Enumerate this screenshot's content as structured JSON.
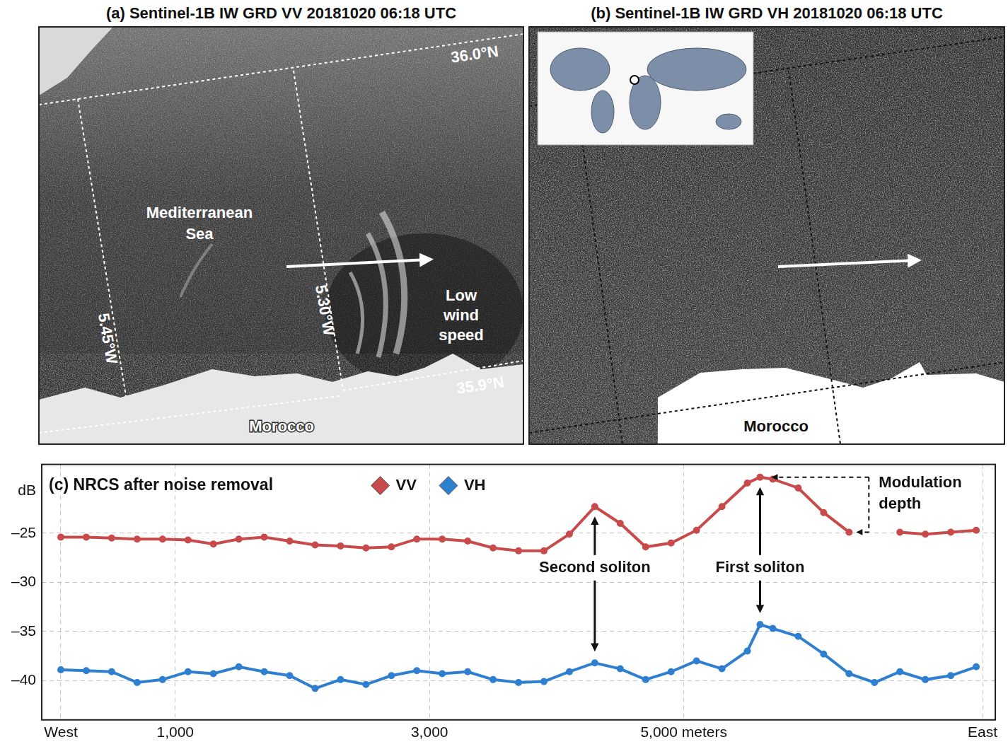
{
  "panels": [
    {
      "title": "(a) Sentinel-1B IW GRD VV 20181020 06:18 UTC",
      "sea_label": "Mediterranean Sea",
      "wind_label": "Low wind speed",
      "lon_labels": [
        "5.45°W",
        "5.30°W"
      ],
      "lat_labels": [
        "36.0°N",
        "35.9°N"
      ],
      "land_label": "Morocco"
    },
    {
      "title": "(b) Sentinel-1B IW GRD VH 20181020 06:18 UTC",
      "land_label": "Morocco"
    }
  ],
  "chart_data": {
    "type": "line",
    "title": "(c) NRCS after noise removal",
    "y_label": "dB",
    "x": [
      100,
      300,
      500,
      700,
      900,
      1100,
      1300,
      1500,
      1700,
      1900,
      2100,
      2300,
      2500,
      2700,
      2900,
      3100,
      3300,
      3500,
      3700,
      3900,
      4100,
      4300,
      4500,
      4700,
      4900,
      5100,
      5300,
      5500,
      5600,
      5700,
      5900,
      6100,
      6300,
      6500,
      6700,
      6900,
      7100,
      7300
    ],
    "series": [
      {
        "name": "VV",
        "color": "#c94a4a",
        "marker": "diamond",
        "values": [
          -25.4,
          -25.4,
          -25.5,
          -25.6,
          -25.6,
          -25.7,
          -26.1,
          -25.6,
          -25.4,
          -25.8,
          -26.2,
          -26.3,
          -26.5,
          -26.4,
          -25.6,
          -25.6,
          -25.8,
          -26.5,
          -26.8,
          -26.8,
          -25.1,
          -22.3,
          -24.0,
          -26.4,
          -26.0,
          -24.7,
          -22.3,
          -19.9,
          -19.3,
          -19.5,
          -20.4,
          -22.9,
          -24.9,
          null,
          -24.9,
          -25.1,
          -24.9,
          -24.7
        ]
      },
      {
        "name": "VH",
        "color": "#2f7fd0",
        "marker": "diamond",
        "values": [
          -38.9,
          -39.0,
          -39.1,
          -40.2,
          -39.9,
          -39.1,
          -39.3,
          -38.6,
          -39.1,
          -39.5,
          -40.8,
          -39.9,
          -40.4,
          -39.5,
          -39.0,
          -39.3,
          -39.1,
          -39.9,
          -40.2,
          -40.1,
          -39.1,
          -38.2,
          -38.8,
          -39.9,
          -39.1,
          -38.0,
          -38.8,
          -37.0,
          -34.3,
          -34.7,
          -35.5,
          -37.3,
          -39.3,
          -40.2,
          -39.1,
          -39.9,
          -39.5,
          -38.6
        ]
      }
    ],
    "xlim": [
      -50,
      7450
    ],
    "xticks": [
      {
        "value": 100,
        "label": "West"
      },
      {
        "value": 1000,
        "label": "1,000"
      },
      {
        "value": 3000,
        "label": "3,000"
      },
      {
        "value": 5000,
        "label": "5,000 meters"
      },
      {
        "value": 7350,
        "label": "East"
      }
    ],
    "ylim": [
      -44,
      -18
    ],
    "yticks": [
      {
        "value": -40,
        "label": "–40"
      },
      {
        "value": -35,
        "label": "–35"
      },
      {
        "value": -30,
        "label": "–30"
      },
      {
        "value": -25,
        "label": "–25"
      }
    ],
    "grid": true,
    "legend": "top",
    "annotations": [
      {
        "text": "Second soliton",
        "x": 4300
      },
      {
        "text": "First soliton",
        "x": 5600
      },
      {
        "text": "Modulation depth"
      }
    ]
  }
}
